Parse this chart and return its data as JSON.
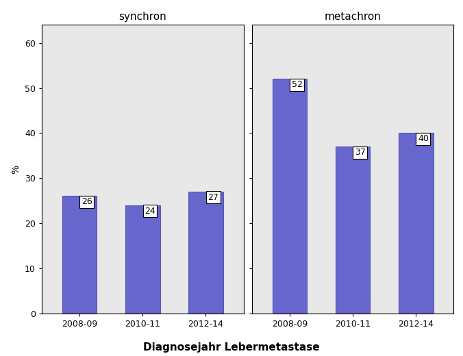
{
  "synchron": {
    "title": "synchron",
    "categories": [
      "2008-09",
      "2010-11",
      "2012-14"
    ],
    "values": [
      26,
      24,
      27
    ]
  },
  "metachron": {
    "title": "metachron",
    "categories": [
      "2008-09",
      "2010-11",
      "2012-14"
    ],
    "values": [
      52,
      37,
      40
    ]
  },
  "bar_color": "#6666cc",
  "bar_edgecolor": "#5555bb",
  "plot_background_color": "#e8e8e8",
  "figure_background_color": "#ffffff",
  "ylim": [
    0,
    64
  ],
  "yticks": [
    0,
    10,
    20,
    30,
    40,
    50,
    60
  ],
  "ylabel": "%",
  "xlabel": "Diagnosejahr Lebermetastase",
  "tick_labelsize": 9,
  "title_fontsize": 11,
  "xlabel_fontsize": 11,
  "ylabel_fontsize": 10,
  "annotation_fontsize": 9,
  "bar_width": 0.55
}
